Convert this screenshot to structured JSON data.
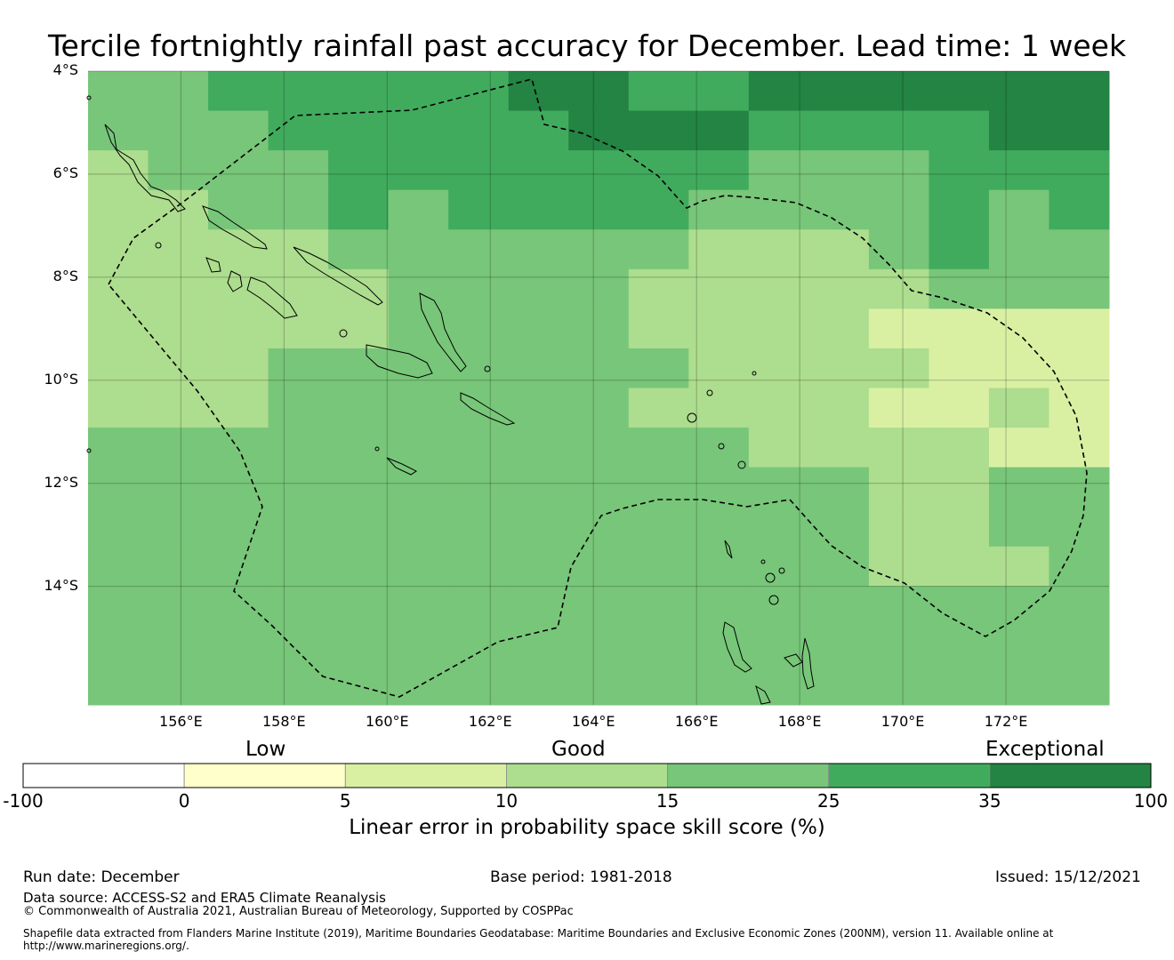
{
  "title": "Tercile fortnightly rainfall past accuracy for December. Lead time: 1 week",
  "map": {
    "lat_labels": [
      "4°S",
      "6°S",
      "8°S",
      "10°S",
      "12°S",
      "14°S"
    ],
    "lon_labels": [
      "156°E",
      "158°E",
      "160°E",
      "162°E",
      "164°E",
      "166°E",
      "168°E",
      "170°E",
      "172°E"
    ],
    "lon_range": [
      154.2,
      174.0
    ],
    "lat_range": [
      -4.0,
      -16.3
    ],
    "grid_cell_deg": 0.83,
    "regions": [
      {
        "name": "solomon-islands-eez",
        "color": "#000000"
      },
      {
        "name": "vanuatu-eez",
        "color": "#000000"
      }
    ]
  },
  "colorbar": {
    "categories": [
      "Low",
      "Good",
      "Exceptional"
    ],
    "ticks": [
      "-100",
      "0",
      "5",
      "10",
      "15",
      "25",
      "35",
      "100"
    ],
    "colors": [
      "#ffffff",
      "#ffffcc",
      "#d9f0a3",
      "#addd8e",
      "#78c679",
      "#41ab5d",
      "#238443"
    ],
    "title": "Linear error in probability space skill score (%)"
  },
  "footer": {
    "run_date": "Run date: December",
    "base_period": "Base period: 1981-2018",
    "issued": "Issued: 15/12/2021",
    "data_source": "Data source: ACCESS-S2 and ERA5 Climate Reanalysis",
    "copyright": "© Commonwealth of Australia 2021, Australian Bureau of Meteorology, Supported by COSPPac",
    "shapefile": "Shapefile data extracted from Flanders Marine Institute (2019), Maritime Boundaries Geodatabase: Maritime Boundaries and Exclusive Economic Zones (200NM), version 11. Available online at http://www.marineregions.org/."
  }
}
